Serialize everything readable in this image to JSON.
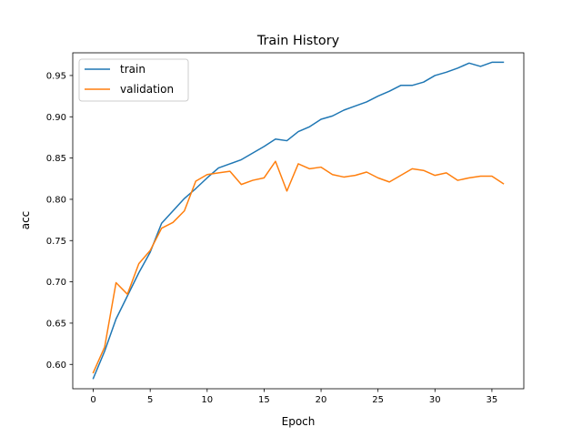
{
  "chart_data": {
    "type": "line",
    "title": "Train History",
    "xlabel": "Epoch",
    "ylabel": "acc",
    "xlim": [
      -1.8,
      37.8
    ],
    "ylim": [
      0.5705,
      0.9775
    ],
    "xticks": [
      0,
      5,
      10,
      15,
      20,
      25,
      30,
      35
    ],
    "yticks": [
      0.6,
      0.65,
      0.7,
      0.75,
      0.8,
      0.85,
      0.9,
      0.95
    ],
    "grid": false,
    "legend": "top-left",
    "x": [
      0,
      1,
      2,
      3,
      4,
      5,
      6,
      7,
      8,
      9,
      10,
      11,
      12,
      13,
      14,
      15,
      16,
      17,
      18,
      19,
      20,
      21,
      22,
      23,
      24,
      25,
      26,
      27,
      28,
      29,
      30,
      31,
      32,
      33,
      34,
      35,
      36
    ],
    "series": [
      {
        "name": "train",
        "color": "#1f77b4",
        "values": [
          0.583,
          0.616,
          0.655,
          0.683,
          0.711,
          0.736,
          0.771,
          0.786,
          0.801,
          0.813,
          0.826,
          0.838,
          0.843,
          0.848,
          0.856,
          0.864,
          0.873,
          0.871,
          0.882,
          0.888,
          0.897,
          0.901,
          0.908,
          0.913,
          0.918,
          0.925,
          0.931,
          0.938,
          0.938,
          0.942,
          0.95,
          0.954,
          0.959,
          0.965,
          0.961,
          0.966,
          0.966
        ]
      },
      {
        "name": "validation",
        "color": "#ff7f0e",
        "values": [
          0.59,
          0.621,
          0.699,
          0.685,
          0.722,
          0.738,
          0.765,
          0.772,
          0.786,
          0.822,
          0.83,
          0.832,
          0.834,
          0.818,
          0.823,
          0.826,
          0.846,
          0.81,
          0.843,
          0.837,
          0.839,
          0.83,
          0.827,
          0.829,
          0.833,
          0.826,
          0.821,
          0.829,
          0.837,
          0.835,
          0.829,
          0.832,
          0.823,
          0.826,
          0.828,
          0.828,
          0.819
        ]
      }
    ]
  }
}
